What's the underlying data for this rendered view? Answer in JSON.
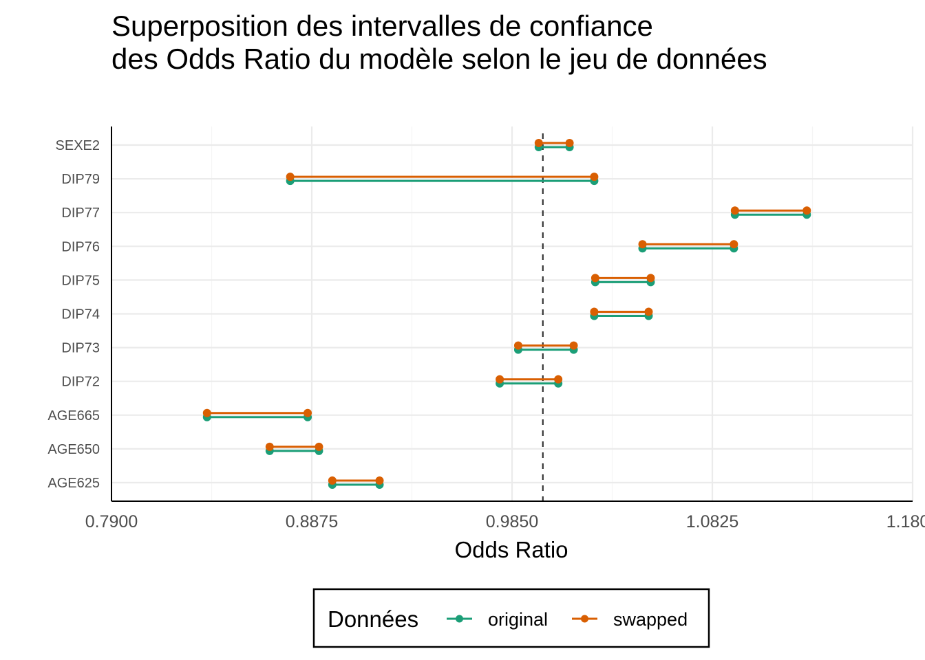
{
  "chart_data": {
    "type": "dumbbell",
    "title": [
      "Superposition des intervalles de confiance",
      "des Odds Ratio du modèle selon le jeu de données"
    ],
    "xlabel": "Odds Ratio",
    "ylabel": "",
    "xlim": [
      0.79,
      1.18
    ],
    "x_ticks": [
      "0.7900",
      "0.8875",
      "0.9850",
      "1.0825",
      "1.1800"
    ],
    "reference_line": 1.0,
    "categories": [
      "SEXE2",
      "DIP79",
      "DIP77",
      "DIP76",
      "DIP75",
      "DIP74",
      "DIP73",
      "DIP72",
      "AGE665",
      "AGE650",
      "AGE625"
    ],
    "legend": {
      "title": "Données",
      "position": "bottom"
    },
    "series": [
      {
        "name": "original",
        "color": "#1b9e77",
        "intervals": [
          [
            0.998,
            1.013
          ],
          [
            0.877,
            1.025
          ],
          [
            1.0935,
            1.1285
          ],
          [
            1.0485,
            1.093
          ],
          [
            1.0255,
            1.0525
          ],
          [
            1.025,
            1.0515
          ],
          [
            0.988,
            1.015
          ],
          [
            0.979,
            1.0075
          ],
          [
            0.8365,
            0.8855
          ],
          [
            0.867,
            0.891
          ],
          [
            0.8975,
            0.9205
          ]
        ]
      },
      {
        "name": "swapped",
        "color": "#d95f02",
        "intervals": [
          [
            0.998,
            1.013
          ],
          [
            0.877,
            1.025
          ],
          [
            1.0935,
            1.1285
          ],
          [
            1.0485,
            1.093
          ],
          [
            1.0255,
            1.0525
          ],
          [
            1.025,
            1.0515
          ],
          [
            0.988,
            1.015
          ],
          [
            0.979,
            1.0075
          ],
          [
            0.8365,
            0.8855
          ],
          [
            0.867,
            0.891
          ],
          [
            0.8975,
            0.9205
          ]
        ]
      }
    ]
  }
}
